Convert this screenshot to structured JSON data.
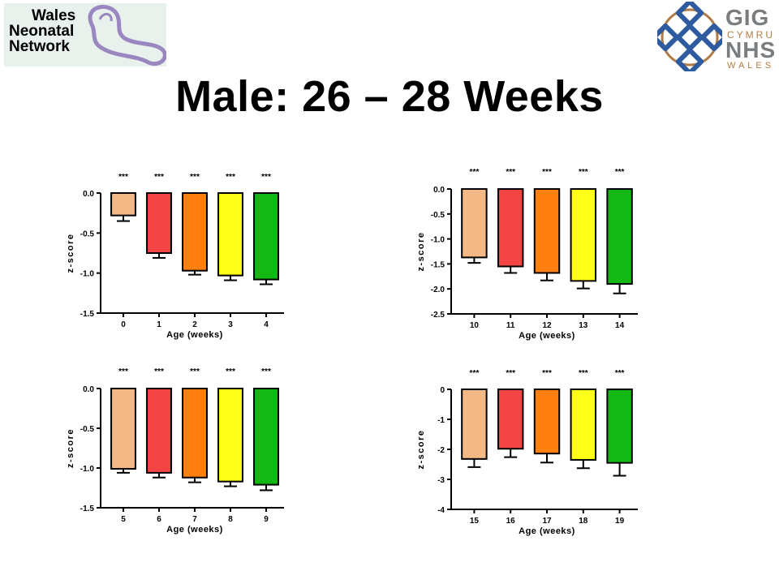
{
  "slide": {
    "title": "Male: 26 – 28 Weeks"
  },
  "logos": {
    "left": {
      "line1": "Wales",
      "line2": "Neonatal",
      "line3": "Network",
      "text_color": "#2b8fb8",
      "mark_color": "#9a87c0"
    },
    "right": {
      "line1": "GIG",
      "line2": "CYMRU",
      "line3": "NHS",
      "line4": "WALES",
      "knot_color": "#2e5aa0",
      "ring_color": "#b07a46"
    }
  },
  "colors": {
    "bars": [
      "#f2b886",
      "#f44545",
      "#ff7f10",
      "#ffff1a",
      "#14b814"
    ]
  },
  "chart_data": [
    {
      "type": "bar",
      "categories": [
        "0",
        "1",
        "2",
        "3",
        "4"
      ],
      "values": [
        -0.28,
        -0.75,
        -0.97,
        -1.03,
        -1.08
      ],
      "errors": [
        0.07,
        0.06,
        0.05,
        0.06,
        0.06
      ],
      "annotations": [
        "***",
        "***",
        "***",
        "***",
        "***"
      ],
      "xlabel": "Age (weeks)",
      "ylabel": "z-score",
      "ylim": [
        -1.5,
        0
      ],
      "yticks": [
        0,
        -0.5,
        -1.0,
        -1.5
      ],
      "ytick_labels": [
        "0.0",
        "-0.5",
        "-1.0",
        "-1.5"
      ]
    },
    {
      "type": "bar",
      "categories": [
        "10",
        "11",
        "12",
        "13",
        "14"
      ],
      "values": [
        -1.37,
        -1.55,
        -1.68,
        -1.84,
        -1.9
      ],
      "errors": [
        0.11,
        0.13,
        0.15,
        0.15,
        0.19
      ],
      "annotations": [
        "***",
        "***",
        "***",
        "***",
        "***"
      ],
      "xlabel": "Age (weeks)",
      "ylabel": "z-score",
      "ylim": [
        -2.5,
        0
      ],
      "yticks": [
        0,
        -0.5,
        -1.0,
        -1.5,
        -2.0,
        -2.5
      ],
      "ytick_labels": [
        "0.0",
        "-0.5",
        "-1.0",
        "-1.5",
        "-2.0",
        "-2.5"
      ]
    },
    {
      "type": "bar",
      "categories": [
        "5",
        "6",
        "7",
        "8",
        "9"
      ],
      "values": [
        -1.01,
        -1.06,
        -1.12,
        -1.17,
        -1.21
      ],
      "errors": [
        0.05,
        0.06,
        0.06,
        0.06,
        0.07
      ],
      "annotations": [
        "***",
        "***",
        "***",
        "***",
        "***"
      ],
      "xlabel": "Age (weeks)",
      "ylabel": "z-score",
      "ylim": [
        -1.5,
        0
      ],
      "yticks": [
        0,
        -0.5,
        -1.0,
        -1.5
      ],
      "ytick_labels": [
        "0.0",
        "-0.5",
        "-1.0",
        "-1.5"
      ]
    },
    {
      "type": "bar",
      "categories": [
        "15",
        "16",
        "17",
        "18",
        "19"
      ],
      "values": [
        -2.32,
        -1.98,
        -2.14,
        -2.35,
        -2.45
      ],
      "errors": [
        0.27,
        0.28,
        0.3,
        0.28,
        0.43
      ],
      "annotations": [
        "***",
        "***",
        "***",
        "***",
        "***"
      ],
      "xlabel": "Age (weeks)",
      "ylabel": "z-score",
      "ylim": [
        -4,
        0
      ],
      "yticks": [
        0,
        -1,
        -2,
        -3,
        -4
      ],
      "ytick_labels": [
        "0",
        "-1",
        "-2",
        "-3",
        "-4"
      ]
    }
  ]
}
